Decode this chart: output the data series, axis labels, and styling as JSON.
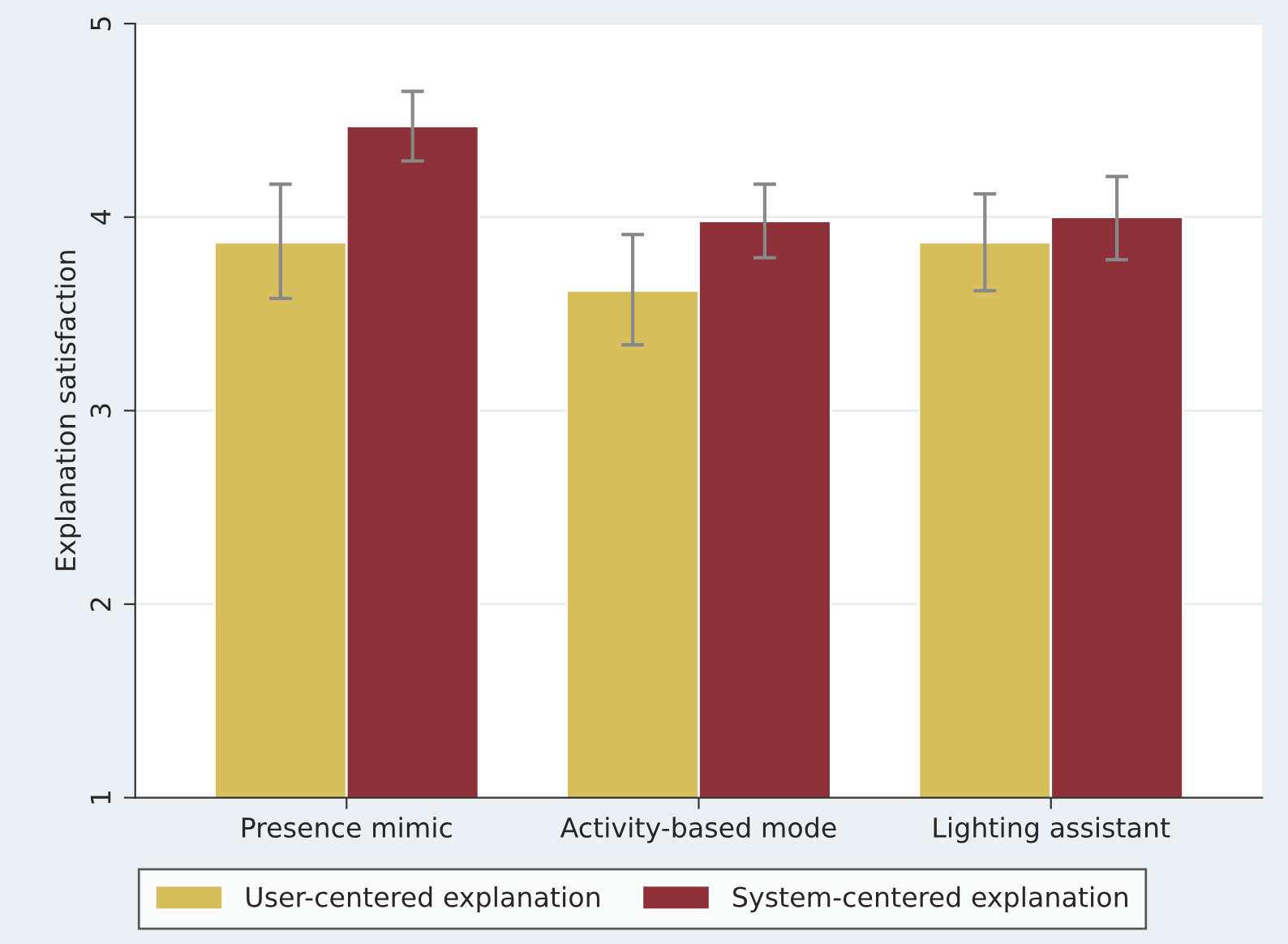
{
  "chart_data": {
    "type": "bar",
    "ylabel": "Explanation satisfaction",
    "categories": [
      "Presence mimic",
      "Activity-based mode",
      "Lighting assistant"
    ],
    "series": [
      {
        "name": "User-centered explanation",
        "color": "#d8bf5e",
        "values": [
          3.87,
          3.62,
          3.87
        ],
        "errors": [
          [
            3.58,
            4.17
          ],
          [
            3.34,
            3.91
          ],
          [
            3.62,
            4.12
          ]
        ]
      },
      {
        "name": "System-centered explanation",
        "color": "#8e3038",
        "values": [
          4.47,
          3.98,
          4.0
        ],
        "errors": [
          [
            4.29,
            4.65
          ],
          [
            3.79,
            4.17
          ],
          [
            3.78,
            4.21
          ]
        ]
      }
    ],
    "ylim": [
      1,
      5
    ],
    "yticks": [
      1,
      2,
      3,
      4,
      5
    ],
    "grid": "y",
    "legend": "bottom"
  }
}
